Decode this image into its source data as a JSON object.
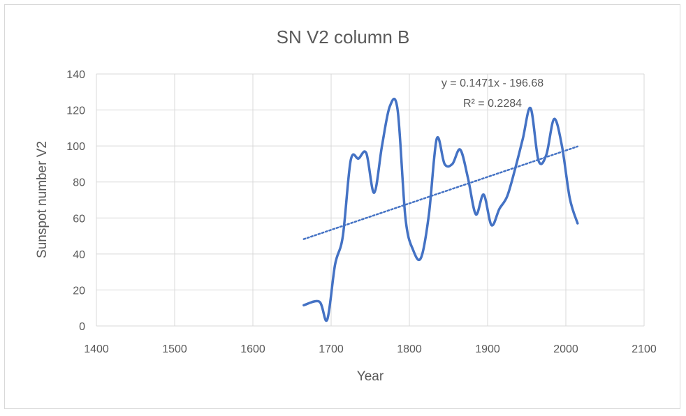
{
  "chart_data": {
    "type": "line",
    "title": "SN V2 column B",
    "xlabel": "Year",
    "ylabel": "Sunspot number V2",
    "xlim": [
      1400,
      2100
    ],
    "ylim": [
      0,
      140
    ],
    "x_ticks": [
      "1400",
      "1500",
      "1600",
      "1700",
      "1800",
      "1900",
      "2000",
      "2100"
    ],
    "y_ticks": [
      "0",
      "20",
      "40",
      "60",
      "80",
      "100",
      "120",
      "140"
    ],
    "grid": true,
    "series": [
      {
        "color": "#4472C4",
        "smooth": true,
        "x": [
          1665,
          1685,
          1695,
          1705,
          1715,
          1725,
          1735,
          1745,
          1755,
          1765,
          1775,
          1785,
          1795,
          1805,
          1815,
          1825,
          1835,
          1845,
          1855,
          1865,
          1875,
          1885,
          1895,
          1905,
          1915,
          1925,
          1935,
          1945,
          1955,
          1965,
          1975,
          1985,
          1995,
          2005,
          2015
        ],
        "y": [
          11.5,
          13.5,
          3.5,
          34,
          50,
          92,
          93,
          96,
          74,
          100,
          122,
          120,
          60,
          42,
          38,
          62,
          104,
          90,
          90,
          98,
          82,
          62,
          73,
          56,
          65,
          72,
          87,
          104,
          121,
          92,
          95,
          115,
          100,
          71,
          57
        ]
      }
    ],
    "trendline": {
      "type": "linear",
      "slope": 0.1471,
      "intercept": -196.68,
      "x_range": [
        1665,
        2015
      ],
      "style": "dotted",
      "color": "#4472C4",
      "equation_label": "y = 0.1471x - 196.68",
      "r2_label": "R² = 0.2284"
    }
  }
}
